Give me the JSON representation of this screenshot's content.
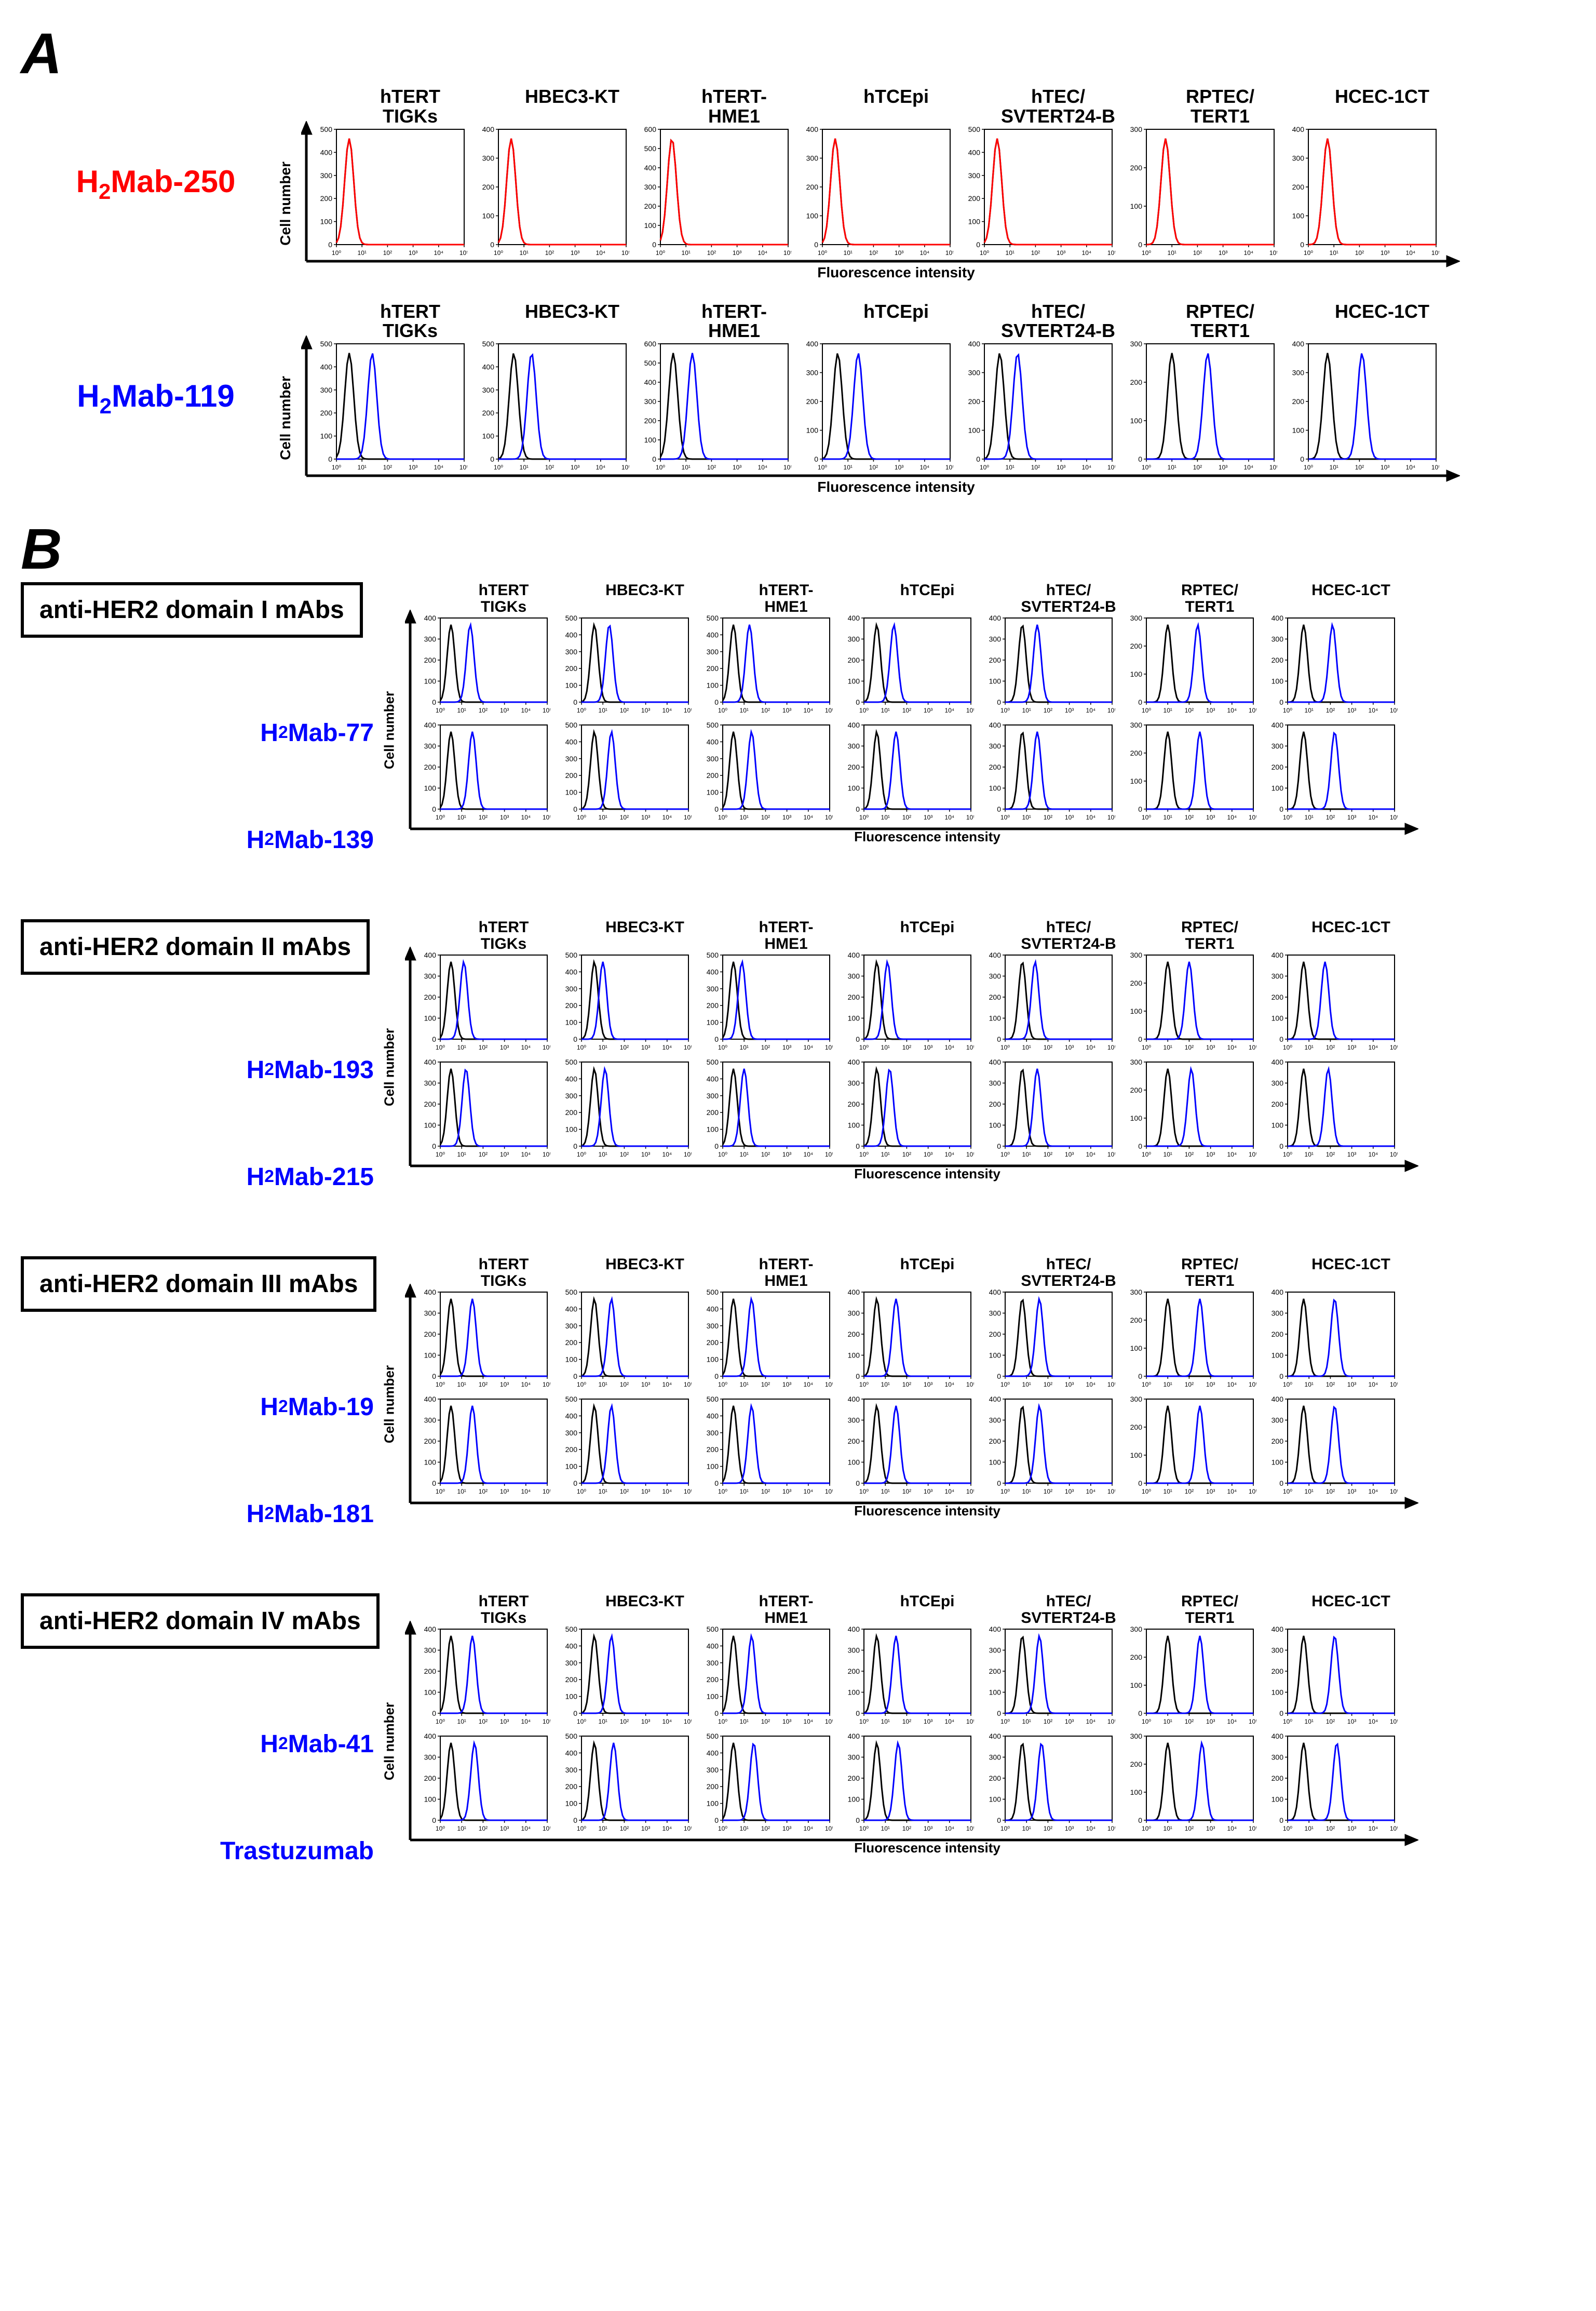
{
  "panelLetters": {
    "A": "A",
    "B": "B"
  },
  "axis": {
    "y": "Cell number",
    "x": "Fluorescence intensity",
    "xticks": [
      "10⁰",
      "10¹",
      "10²",
      "10³",
      "10⁴",
      "10⁵"
    ]
  },
  "cellLines": [
    "hTERT\nTIGKs",
    "HBEC3-KT",
    "hTERT-\nHME1",
    "hTCEpi",
    "hTEC/\nSVTERT24-B",
    "RPTEC/\nTERT1",
    "HCEC-1CT"
  ],
  "colors": {
    "controlLine": "#000000",
    "red": "#ff0000",
    "blue": "#0000ff",
    "plotBorder": "#000000",
    "bg": "#ffffff"
  },
  "sectionA": {
    "rows": [
      {
        "label": "H₂Mab-250",
        "labelColor": "red",
        "lineColor": "#ff0000",
        "large": true,
        "plots": [
          {
            "ymax": 500,
            "peak_ctrl": 0.1,
            "peak_ab": 0.1
          },
          {
            "ymax": 400,
            "peak_ctrl": 0.1,
            "peak_ab": 0.1
          },
          {
            "ymax": 600,
            "peak_ctrl": 0.09,
            "peak_ab": 0.09
          },
          {
            "ymax": 400,
            "peak_ctrl": 0.1,
            "peak_ab": 0.1
          },
          {
            "ymax": 500,
            "peak_ctrl": 0.1,
            "peak_ab": 0.1
          },
          {
            "ymax": 300,
            "peak_ctrl": 0.15,
            "peak_ab": 0.15
          },
          {
            "ymax": 400,
            "peak_ctrl": 0.15,
            "peak_ab": 0.15
          }
        ]
      },
      {
        "label": "H₂Mab-119",
        "labelColor": "blue",
        "lineColor": "#0000ff",
        "large": true,
        "plots": [
          {
            "ymax": 500,
            "peak_ctrl": 0.1,
            "peak_ab": 0.28
          },
          {
            "ymax": 500,
            "peak_ctrl": 0.12,
            "peak_ab": 0.26
          },
          {
            "ymax": 600,
            "peak_ctrl": 0.1,
            "peak_ab": 0.25
          },
          {
            "ymax": 400,
            "peak_ctrl": 0.12,
            "peak_ab": 0.28
          },
          {
            "ymax": 400,
            "peak_ctrl": 0.12,
            "peak_ab": 0.26
          },
          {
            "ymax": 300,
            "peak_ctrl": 0.2,
            "peak_ab": 0.48
          },
          {
            "ymax": 400,
            "peak_ctrl": 0.15,
            "peak_ab": 0.42
          }
        ]
      }
    ]
  },
  "sectionB": {
    "groups": [
      {
        "title": "anti-HER2 domain I mAbs",
        "antibodies": [
          {
            "label": "H₂Mab-77",
            "plots": [
              {
                "ymax": 400,
                "peak_ctrl": 0.1,
                "peak_ab": 0.28
              },
              {
                "ymax": 500,
                "peak_ctrl": 0.12,
                "peak_ab": 0.26
              },
              {
                "ymax": 500,
                "peak_ctrl": 0.1,
                "peak_ab": 0.25
              },
              {
                "ymax": 400,
                "peak_ctrl": 0.12,
                "peak_ab": 0.28
              },
              {
                "ymax": 400,
                "peak_ctrl": 0.16,
                "peak_ab": 0.3
              },
              {
                "ymax": 300,
                "peak_ctrl": 0.2,
                "peak_ab": 0.48
              },
              {
                "ymax": 400,
                "peak_ctrl": 0.15,
                "peak_ab": 0.42
              }
            ]
          },
          {
            "label": "H₂Mab-139",
            "plots": [
              {
                "ymax": 400,
                "peak_ctrl": 0.1,
                "peak_ab": 0.3
              },
              {
                "ymax": 500,
                "peak_ctrl": 0.12,
                "peak_ab": 0.28
              },
              {
                "ymax": 500,
                "peak_ctrl": 0.1,
                "peak_ab": 0.27
              },
              {
                "ymax": 400,
                "peak_ctrl": 0.12,
                "peak_ab": 0.3
              },
              {
                "ymax": 400,
                "peak_ctrl": 0.16,
                "peak_ab": 0.3
              },
              {
                "ymax": 300,
                "peak_ctrl": 0.2,
                "peak_ab": 0.5
              },
              {
                "ymax": 400,
                "peak_ctrl": 0.15,
                "peak_ab": 0.44
              }
            ]
          }
        ]
      },
      {
        "title": "anti-HER2 domain II mAbs",
        "antibodies": [
          {
            "label": "H₂Mab-193",
            "plots": [
              {
                "ymax": 400,
                "peak_ctrl": 0.1,
                "peak_ab": 0.22
              },
              {
                "ymax": 500,
                "peak_ctrl": 0.12,
                "peak_ab": 0.2
              },
              {
                "ymax": 500,
                "peak_ctrl": 0.1,
                "peak_ab": 0.18
              },
              {
                "ymax": 400,
                "peak_ctrl": 0.12,
                "peak_ab": 0.22
              },
              {
                "ymax": 400,
                "peak_ctrl": 0.16,
                "peak_ab": 0.28
              },
              {
                "ymax": 300,
                "peak_ctrl": 0.2,
                "peak_ab": 0.4
              },
              {
                "ymax": 400,
                "peak_ctrl": 0.15,
                "peak_ab": 0.35
              }
            ]
          },
          {
            "label": "H₂Mab-215",
            "plots": [
              {
                "ymax": 400,
                "peak_ctrl": 0.1,
                "peak_ab": 0.24
              },
              {
                "ymax": 500,
                "peak_ctrl": 0.12,
                "peak_ab": 0.22
              },
              {
                "ymax": 500,
                "peak_ctrl": 0.1,
                "peak_ab": 0.2
              },
              {
                "ymax": 400,
                "peak_ctrl": 0.12,
                "peak_ab": 0.24
              },
              {
                "ymax": 400,
                "peak_ctrl": 0.16,
                "peak_ab": 0.3
              },
              {
                "ymax": 300,
                "peak_ctrl": 0.2,
                "peak_ab": 0.42
              },
              {
                "ymax": 400,
                "peak_ctrl": 0.15,
                "peak_ab": 0.38
              }
            ]
          }
        ]
      },
      {
        "title": "anti-HER2 domain III mAbs",
        "antibodies": [
          {
            "label": "H₂Mab-19",
            "plots": [
              {
                "ymax": 400,
                "peak_ctrl": 0.1,
                "peak_ab": 0.3
              },
              {
                "ymax": 500,
                "peak_ctrl": 0.12,
                "peak_ab": 0.28
              },
              {
                "ymax": 500,
                "peak_ctrl": 0.1,
                "peak_ab": 0.27
              },
              {
                "ymax": 400,
                "peak_ctrl": 0.12,
                "peak_ab": 0.3
              },
              {
                "ymax": 400,
                "peak_ctrl": 0.16,
                "peak_ab": 0.32
              },
              {
                "ymax": 300,
                "peak_ctrl": 0.2,
                "peak_ab": 0.5
              },
              {
                "ymax": 400,
                "peak_ctrl": 0.15,
                "peak_ab": 0.44
              }
            ]
          },
          {
            "label": "H₂Mab-181",
            "plots": [
              {
                "ymax": 400,
                "peak_ctrl": 0.1,
                "peak_ab": 0.3
              },
              {
                "ymax": 500,
                "peak_ctrl": 0.12,
                "peak_ab": 0.28
              },
              {
                "ymax": 500,
                "peak_ctrl": 0.1,
                "peak_ab": 0.27
              },
              {
                "ymax": 400,
                "peak_ctrl": 0.12,
                "peak_ab": 0.3
              },
              {
                "ymax": 400,
                "peak_ctrl": 0.16,
                "peak_ab": 0.32
              },
              {
                "ymax": 300,
                "peak_ctrl": 0.2,
                "peak_ab": 0.5
              },
              {
                "ymax": 400,
                "peak_ctrl": 0.15,
                "peak_ab": 0.44
              }
            ]
          }
        ]
      },
      {
        "title": "anti-HER2 domain IV mAbs",
        "antibodies": [
          {
            "label": "H₂Mab-41",
            "plots": [
              {
                "ymax": 400,
                "peak_ctrl": 0.1,
                "peak_ab": 0.3
              },
              {
                "ymax": 500,
                "peak_ctrl": 0.12,
                "peak_ab": 0.28
              },
              {
                "ymax": 500,
                "peak_ctrl": 0.1,
                "peak_ab": 0.27
              },
              {
                "ymax": 400,
                "peak_ctrl": 0.12,
                "peak_ab": 0.3
              },
              {
                "ymax": 400,
                "peak_ctrl": 0.16,
                "peak_ab": 0.32
              },
              {
                "ymax": 300,
                "peak_ctrl": 0.2,
                "peak_ab": 0.5
              },
              {
                "ymax": 400,
                "peak_ctrl": 0.15,
                "peak_ab": 0.44
              }
            ]
          },
          {
            "label": "Trastuzumab",
            "plots": [
              {
                "ymax": 400,
                "peak_ctrl": 0.1,
                "peak_ab": 0.32
              },
              {
                "ymax": 500,
                "peak_ctrl": 0.12,
                "peak_ab": 0.3
              },
              {
                "ymax": 500,
                "peak_ctrl": 0.1,
                "peak_ab": 0.29
              },
              {
                "ymax": 400,
                "peak_ctrl": 0.12,
                "peak_ab": 0.32
              },
              {
                "ymax": 400,
                "peak_ctrl": 0.16,
                "peak_ab": 0.34
              },
              {
                "ymax": 300,
                "peak_ctrl": 0.2,
                "peak_ab": 0.52
              },
              {
                "ymax": 400,
                "peak_ctrl": 0.15,
                "peak_ab": 0.46
              }
            ]
          }
        ]
      }
    ]
  },
  "plotGeom": {
    "largeW": 300,
    "largeH": 260,
    "smallW": 260,
    "smallH": 200,
    "gap": 12
  }
}
